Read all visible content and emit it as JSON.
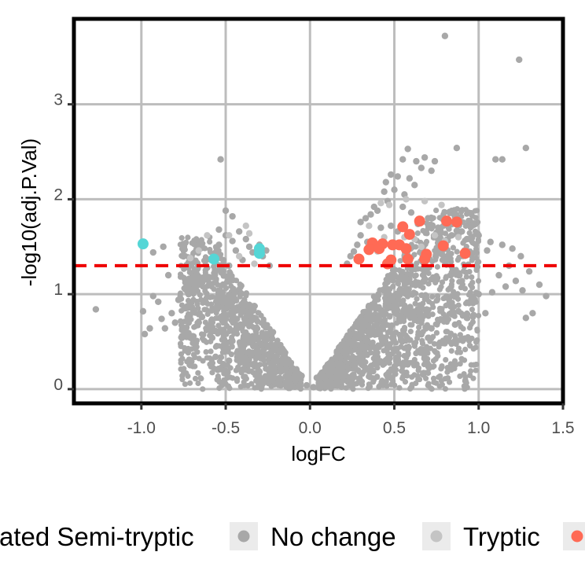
{
  "chart_data": {
    "type": "scatter",
    "xlabel": "logFC",
    "ylabel": "-log10(adj.P.Val)",
    "xlim": [
      -1.4,
      1.5
    ],
    "ylim": [
      -0.15,
      3.9
    ],
    "x_ticks": [
      -1.0,
      -0.5,
      0.0,
      0.5,
      1.0,
      1.5
    ],
    "x_tick_labels": [
      "-1.0",
      "-0.5",
      "0.0",
      "0.5",
      "1.0",
      "1.5"
    ],
    "y_ticks": [
      0,
      1,
      2,
      3
    ],
    "y_tick_labels": [
      "0",
      "1",
      "2",
      "3"
    ],
    "grid": true,
    "threshold_line": {
      "y": 1.3,
      "color": "#ee0000",
      "style": "dashed"
    },
    "legend": {
      "placement": "bottom",
      "entries": [
        {
          "label": "ated Semi-tryptic",
          "color": "#55d6d6"
        },
        {
          "label": "No change",
          "color": "#a8a8a8"
        },
        {
          "label": "Tryptic",
          "color": "#c4c4c4"
        },
        {
          "label": "",
          "color": "#ff6a55"
        }
      ]
    },
    "series": [
      {
        "name": "No change",
        "color": "#a8a8a8",
        "points": [
          [
            0.8,
            3.72
          ],
          [
            1.24,
            3.47
          ],
          [
            1.28,
            2.54
          ],
          [
            0.87,
            2.54
          ],
          [
            0.58,
            2.53
          ],
          [
            -0.53,
            2.42
          ],
          [
            1.1,
            2.42
          ],
          [
            1.14,
            2.42
          ],
          [
            0.55,
            2.42
          ],
          [
            0.63,
            2.4
          ],
          [
            0.68,
            2.44
          ],
          [
            0.74,
            2.4
          ],
          [
            0.48,
            2.26
          ],
          [
            0.52,
            2.24
          ],
          [
            0.66,
            2.33
          ],
          [
            0.45,
            2.18
          ],
          [
            0.59,
            2.22
          ],
          [
            0.72,
            2.3
          ],
          [
            0.5,
            2.1
          ],
          [
            0.56,
            2.05
          ],
          [
            0.44,
            2.08
          ],
          [
            0.62,
            2.15
          ],
          [
            0.46,
            1.98
          ],
          [
            0.38,
            1.92
          ],
          [
            0.4,
            1.88
          ],
          [
            0.55,
            1.92
          ],
          [
            0.6,
            1.86
          ],
          [
            0.7,
            1.8
          ],
          [
            0.36,
            1.84
          ],
          [
            0.33,
            1.8
          ],
          [
            0.3,
            1.76
          ],
          [
            0.42,
            1.7
          ],
          [
            0.48,
            1.72
          ],
          [
            0.52,
            1.66
          ],
          [
            0.64,
            1.74
          ],
          [
            0.76,
            1.7
          ],
          [
            0.9,
            1.66
          ],
          [
            0.84,
            1.62
          ],
          [
            1.0,
            1.62
          ],
          [
            1.07,
            1.55
          ],
          [
            1.14,
            1.52
          ],
          [
            1.05,
            1.46
          ],
          [
            1.2,
            1.48
          ],
          [
            0.96,
            1.72
          ],
          [
            0.93,
            1.58
          ],
          [
            0.28,
            1.52
          ],
          [
            0.3,
            1.62
          ],
          [
            0.26,
            1.45
          ],
          [
            0.34,
            1.55
          ],
          [
            0.24,
            1.4
          ],
          [
            0.22,
            1.32
          ],
          [
            1.25,
            1.4
          ],
          [
            1.18,
            1.3
          ],
          [
            1.3,
            1.24
          ],
          [
            1.12,
            1.2
          ],
          [
            1.22,
            1.14
          ],
          [
            1.26,
            1.04
          ],
          [
            1.16,
            1.08
          ],
          [
            1.08,
            1.02
          ],
          [
            1.4,
            0.98
          ],
          [
            1.36,
            1.1
          ],
          [
            1.0,
            1.0
          ],
          [
            1.32,
            0.8
          ],
          [
            1.28,
            0.75
          ],
          [
            1.04,
            0.8
          ],
          [
            0.97,
            0.78
          ],
          [
            0.93,
            0.75
          ],
          [
            0.86,
            0.68
          ],
          [
            0.88,
            0.82
          ],
          [
            0.8,
            0.74
          ],
          [
            0.72,
            0.64
          ],
          [
            0.7,
            0.54
          ],
          [
            0.62,
            0.48
          ],
          [
            0.66,
            0.58
          ],
          [
            0.58,
            0.42
          ],
          [
            0.54,
            0.52
          ],
          [
            0.5,
            0.4
          ],
          [
            0.46,
            0.32
          ],
          [
            0.41,
            0.28
          ],
          [
            -1.27,
            0.84
          ],
          [
            -0.99,
            0.82
          ],
          [
            -0.98,
            0.58
          ],
          [
            -0.95,
            0.64
          ],
          [
            -0.93,
            1.44
          ],
          [
            -0.93,
            0.98
          ],
          [
            -0.9,
            0.92
          ],
          [
            -0.88,
            0.74
          ],
          [
            -0.87,
            1.5
          ],
          [
            -0.86,
            0.64
          ],
          [
            -0.84,
            1.2
          ],
          [
            -0.82,
            0.8
          ],
          [
            -0.8,
            0.7
          ],
          [
            -0.78,
            0.94
          ],
          [
            -0.76,
            0.54
          ],
          [
            -0.74,
            0.62
          ],
          [
            -0.72,
            1.0
          ],
          [
            -0.72,
            0.7
          ],
          [
            -0.7,
            0.86
          ],
          [
            -0.69,
            1.18
          ],
          [
            -0.68,
            0.46
          ],
          [
            -0.66,
            1.1
          ],
          [
            -0.64,
            0.76
          ],
          [
            -0.62,
            0.92
          ],
          [
            -0.6,
            1.18
          ],
          [
            -0.58,
            0.54
          ],
          [
            -0.56,
            1.42
          ],
          [
            -0.55,
            0.84
          ],
          [
            -0.54,
            1.52
          ],
          [
            -0.52,
            1.02
          ],
          [
            -0.5,
            1.62
          ],
          [
            -0.5,
            0.74
          ],
          [
            -0.48,
            1.3
          ],
          [
            -0.46,
            1.56
          ],
          [
            -0.44,
            1.46
          ],
          [
            -0.44,
            0.6
          ],
          [
            -0.42,
            1.66
          ],
          [
            -0.4,
            1.36
          ],
          [
            -0.38,
            1.58
          ],
          [
            -0.36,
            1.5
          ],
          [
            -0.34,
            1.44
          ],
          [
            -0.46,
            1.82
          ],
          [
            -0.5,
            1.88
          ],
          [
            -0.54,
            1.68
          ],
          [
            -0.3,
            1.52
          ],
          [
            -0.28,
            1.4
          ],
          [
            -0.26,
            1.46
          ],
          [
            -0.24,
            1.3
          ],
          [
            -0.56,
            0.34
          ],
          [
            -0.48,
            0.3
          ],
          [
            -0.4,
            0.4
          ],
          [
            -0.34,
            0.26
          ],
          [
            -0.3,
            0.34
          ],
          [
            -0.26,
            0.52
          ],
          [
            -0.22,
            0.6
          ],
          [
            0.02,
            0.02
          ],
          [
            -0.02,
            0.04
          ],
          [
            0.04,
            0.12
          ],
          [
            -0.05,
            0.14
          ],
          [
            0.06,
            0.06
          ]
        ]
      },
      {
        "name": "Tryptic",
        "color": "#c4c4c4",
        "points": [
          [
            0.42,
            1.96
          ],
          [
            0.47,
            1.94
          ],
          [
            0.57,
            2.0
          ],
          [
            0.68,
            1.98
          ],
          [
            0.78,
            1.94
          ],
          [
            0.35,
            1.72
          ],
          [
            0.44,
            1.6
          ],
          [
            0.56,
            1.6
          ],
          [
            0.62,
            1.58
          ],
          [
            0.74,
            1.62
          ],
          [
            0.8,
            1.56
          ],
          [
            0.88,
            1.6
          ],
          [
            0.5,
            1.54
          ],
          [
            0.66,
            1.5
          ],
          [
            0.4,
            1.45
          ],
          [
            -0.38,
            1.72
          ],
          [
            -0.42,
            1.4
          ],
          [
            -0.48,
            1.62
          ],
          [
            -0.36,
            1.64
          ],
          [
            -0.33,
            1.32
          ],
          [
            -0.61,
            1.62
          ],
          [
            -0.66,
            1.46
          ],
          [
            -0.71,
            1.38
          ]
        ]
      },
      {
        "name": "",
        "color": "#ff6a55",
        "points": [
          [
            0.65,
            1.77
          ],
          [
            0.81,
            1.77
          ],
          [
            0.87,
            1.76
          ],
          [
            0.55,
            1.71
          ],
          [
            0.59,
            1.63
          ],
          [
            0.37,
            1.54
          ],
          [
            0.43,
            1.53
          ],
          [
            0.49,
            1.52
          ],
          [
            0.53,
            1.52
          ],
          [
            0.79,
            1.51
          ],
          [
            0.35,
            1.47
          ],
          [
            0.41,
            1.48
          ],
          [
            0.57,
            1.48
          ],
          [
            0.92,
            1.43
          ],
          [
            0.69,
            1.42
          ],
          [
            0.29,
            1.37
          ],
          [
            0.48,
            1.36
          ],
          [
            0.58,
            1.37
          ],
          [
            0.68,
            1.37
          ],
          [
            0.46,
            1.32
          ]
        ]
      },
      {
        "name": "ated Semi-tryptic",
        "color": "#55d6d6",
        "points": [
          [
            -0.99,
            1.53
          ],
          [
            -0.3,
            1.48
          ],
          [
            -0.3,
            1.43
          ],
          [
            -0.57,
            1.37
          ]
        ]
      }
    ]
  }
}
